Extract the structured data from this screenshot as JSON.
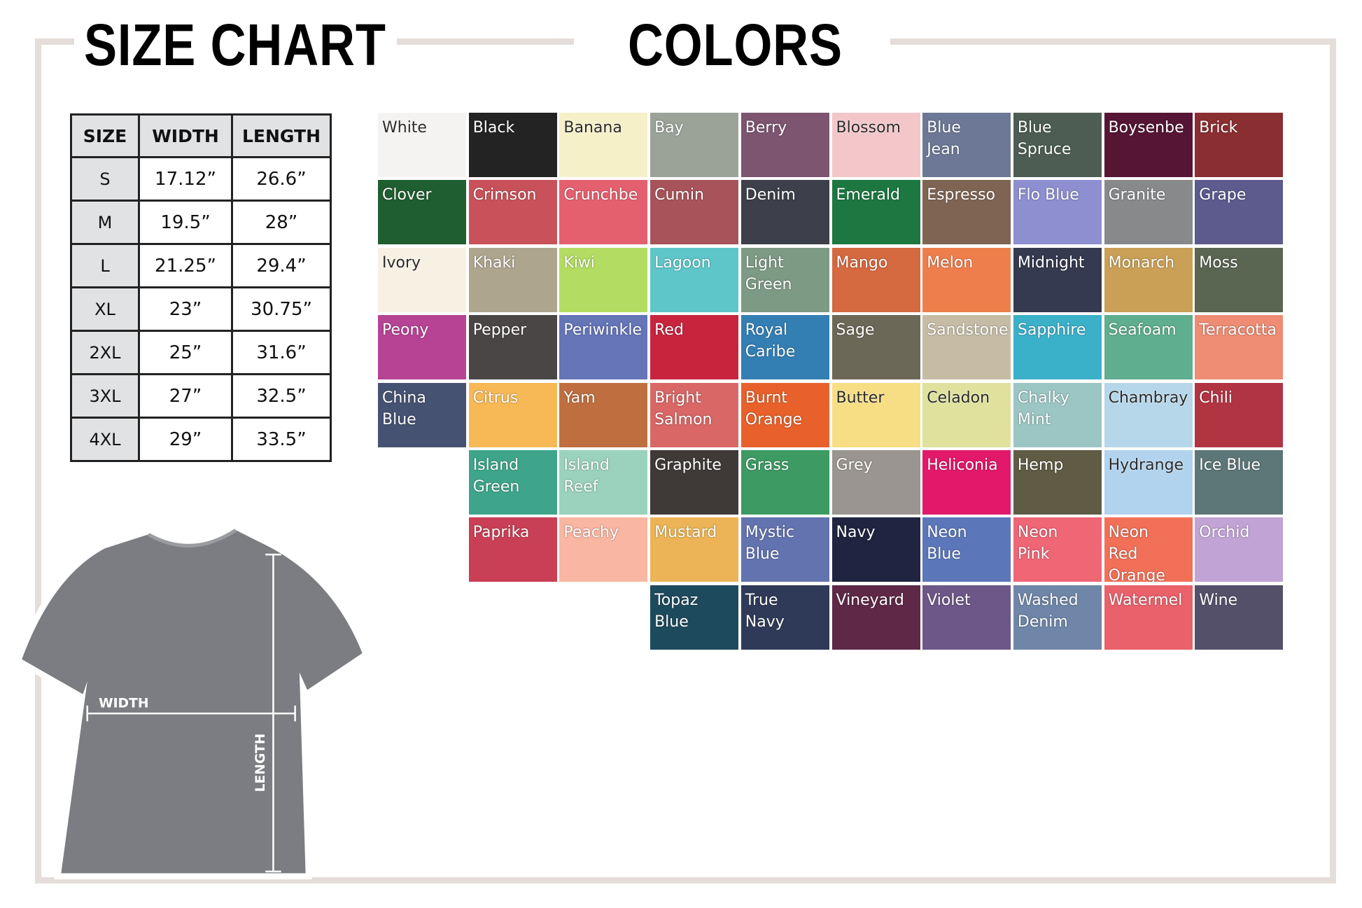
{
  "headings": {
    "size_chart": "SIZE CHART",
    "colors": "COLORS"
  },
  "frame_color": "#e4ddd9",
  "size_table": {
    "headers": [
      "SIZE",
      "WIDTH",
      "LENGTH"
    ],
    "rows": [
      [
        "S",
        "17.12”",
        "26.6”"
      ],
      [
        "M",
        "19.5”",
        "28”"
      ],
      [
        "L",
        "21.25”",
        "29.4”"
      ],
      [
        "XL",
        "23”",
        "30.75”"
      ],
      [
        "2XL",
        "25”",
        "31.6”"
      ],
      [
        "3XL",
        "27”",
        "32.5”"
      ],
      [
        "4XL",
        "29”",
        "33.5”"
      ]
    ]
  },
  "shirt": {
    "width_label": "WIDTH",
    "length_label": "LENGTH",
    "shirt_color": "#7b7d82"
  },
  "colors": [
    [
      {
        "name": "White",
        "hex": "#f5f3f1"
      },
      {
        "name": "Black",
        "hex": "#242323"
      },
      {
        "name": "Banana",
        "hex": "#f5f0c8"
      },
      {
        "name": "Bay",
        "hex": "#9ba399"
      },
      {
        "name": "Berry",
        "hex": "#7d5570"
      },
      {
        "name": "Blossom",
        "hex": "#f3c6ca"
      },
      {
        "name": "Blue\nJean",
        "hex": "#6c7896"
      },
      {
        "name": "Blue\nSpruce",
        "hex": "#4d5d53"
      },
      {
        "name": "Boysenbe",
        "hex": "#561535"
      },
      {
        "name": "Brick",
        "hex": "#8a2e32"
      }
    ],
    [
      {
        "name": "Clover",
        "hex": "#1f5e30"
      },
      {
        "name": "Crimson",
        "hex": "#c9525a"
      },
      {
        "name": "Crunchbe",
        "hex": "#e5606e"
      },
      {
        "name": "Cumin",
        "hex": "#a8535a"
      },
      {
        "name": "Denim",
        "hex": "#3d3f4a"
      },
      {
        "name": "Emerald",
        "hex": "#1c7840"
      },
      {
        "name": "Espresso",
        "hex": "#7f6453"
      },
      {
        "name": "Flo Blue",
        "hex": "#8d8fd0"
      },
      {
        "name": "Granite",
        "hex": "#87898b"
      },
      {
        "name": "Grape",
        "hex": "#5d5a8e"
      }
    ],
    [
      {
        "name": "Ivory",
        "hex": "#f6f1e3"
      },
      {
        "name": "Khaki",
        "hex": "#aea58f"
      },
      {
        "name": "Kiwi",
        "hex": "#b3dd62"
      },
      {
        "name": "Lagoon",
        "hex": "#5ec6c9"
      },
      {
        "name": "Light\nGreen",
        "hex": "#7d9a84"
      },
      {
        "name": "Mango",
        "hex": "#d5693f"
      },
      {
        "name": "Melon",
        "hex": "#ee7f4c"
      },
      {
        "name": "Midnight",
        "hex": "#353a50"
      },
      {
        "name": "Monarch",
        "hex": "#c9a056"
      },
      {
        "name": "Moss",
        "hex": "#5a6552"
      }
    ],
    [
      {
        "name": "Peony",
        "hex": "#b74394"
      },
      {
        "name": "Pepper",
        "hex": "#4a4645"
      },
      {
        "name": "Periwinkle",
        "hex": "#6475b8"
      },
      {
        "name": "Red",
        "hex": "#c8243e"
      },
      {
        "name": "Royal\nCaribe",
        "hex": "#337fb4"
      },
      {
        "name": "Sage",
        "hex": "#6c6858"
      },
      {
        "name": "Sandstone",
        "hex": "#c6bca6"
      },
      {
        "name": "Sapphire",
        "hex": "#3ab0c9"
      },
      {
        "name": "Seafoam",
        "hex": "#5fae8f"
      },
      {
        "name": "Terracotta",
        "hex": "#ee8c74"
      }
    ],
    [
      {
        "name": "China\nBlue",
        "hex": "#465272"
      },
      {
        "name": "Citrus",
        "hex": "#f7b856"
      },
      {
        "name": "Yam",
        "hex": "#bf6f3f"
      },
      {
        "name": "Bright\nSalmon",
        "hex": "#d86766"
      },
      {
        "name": "Burnt\nOrange",
        "hex": "#e8612b"
      },
      {
        "name": "Butter",
        "hex": "#f7dd83"
      },
      {
        "name": "Celadon",
        "hex": "#dfe19d"
      },
      {
        "name": "Chalky\nMint",
        "hex": "#9bc6c4"
      },
      {
        "name": "Chambray",
        "hex": "#b5d7e9"
      },
      {
        "name": "Chili",
        "hex": "#b13443"
      }
    ],
    [
      {
        "name": "Island\nGreen",
        "hex": "#3fa58a"
      },
      {
        "name": "Island\nReef",
        "hex": "#9ad2bd"
      },
      {
        "name": "Graphite",
        "hex": "#3f3a38"
      },
      {
        "name": "Grass",
        "hex": "#3d9a62"
      },
      {
        "name": "Grey",
        "hex": "#9a9590"
      },
      {
        "name": "Heliconia",
        "hex": "#e2186a"
      },
      {
        "name": "Hemp",
        "hex": "#5f5b45"
      },
      {
        "name": "Hydrange",
        "hex": "#b1d3ee"
      },
      {
        "name": "Ice Blue",
        "hex": "#5d7677"
      }
    ],
    [
      {
        "name": "Paprika",
        "hex": "#c93f55"
      },
      {
        "name": "Peachy",
        "hex": "#f9b6a2"
      },
      {
        "name": "Mustard",
        "hex": "#ecb456"
      },
      {
        "name": "Mystic\nBlue",
        "hex": "#6373b0"
      },
      {
        "name": "Navy",
        "hex": "#1f2540"
      },
      {
        "name": "Neon\nBlue",
        "hex": "#5c77b9"
      },
      {
        "name": "Neon\nPink",
        "hex": "#ef6675"
      },
      {
        "name": "Neon\nRed\nOrange",
        "hex": "#f27058"
      },
      {
        "name": "Orchid",
        "hex": "#c2a3d6"
      }
    ],
    [
      {
        "name": "Topaz\nBlue",
        "hex": "#1e4a5e"
      },
      {
        "name": "True\nNavy",
        "hex": "#2f3a58"
      },
      {
        "name": "Vineyard",
        "hex": "#5f2846"
      },
      {
        "name": "Violet",
        "hex": "#6d5788"
      },
      {
        "name": "Washed\nDenim",
        "hex": "#6f86a8"
      },
      {
        "name": "Watermel",
        "hex": "#e9616a"
      },
      {
        "name": "Wine",
        "hex": "#55506a"
      }
    ]
  ]
}
